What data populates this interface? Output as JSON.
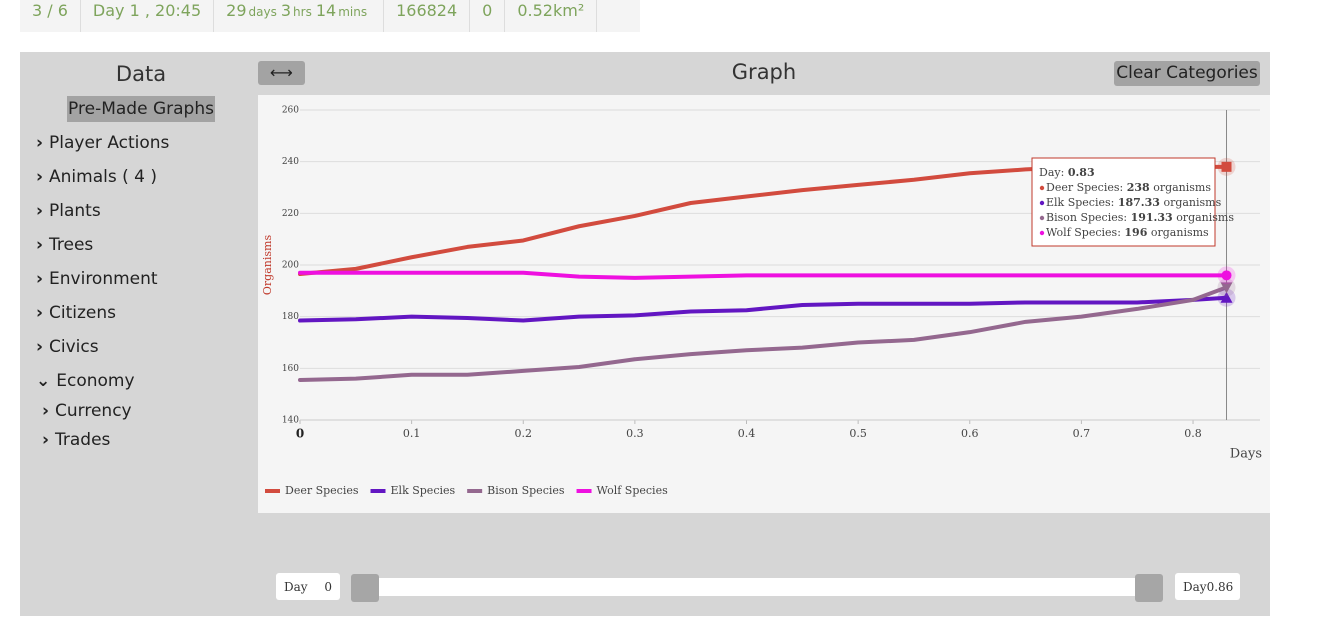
{
  "status_bar": {
    "round": "3 / 6",
    "clock": "Day 1 , 20:45",
    "duration": [
      {
        "number": "29",
        "unit": "days"
      },
      {
        "number": "3",
        "unit": "hrs"
      },
      {
        "number": "14",
        "unit": "mins"
      }
    ],
    "count": "166824",
    "zero": "0",
    "area": "0.52km²"
  },
  "sidebar": {
    "title": "Data",
    "button": "Pre-Made Graphs",
    "items": [
      "Player Actions",
      "Animals ( 4 )",
      "Plants",
      "Trees",
      "Environment",
      "Citizens",
      "Civics",
      "Economy"
    ],
    "subitems": [
      "Currency",
      "Trades"
    ]
  },
  "graph": {
    "type": "line",
    "title": "Graph",
    "clear_button": "Clear Categories",
    "y_label": "Organisms",
    "x_label": "Days",
    "x": [
      0,
      0.05,
      0.1,
      0.15,
      0.2,
      0.25,
      0.3,
      0.35,
      0.4,
      0.45,
      0.5,
      0.55,
      0.6,
      0.65,
      0.7,
      0.75,
      0.8,
      0.83
    ],
    "series": [
      {
        "name": "Deer Species",
        "color": "#d24b3e",
        "values": [
          196.5,
          198.5,
          203,
          207,
          209.5,
          215,
          219,
          224,
          226.5,
          229,
          231,
          233,
          235.5,
          237,
          238,
          238,
          238,
          238
        ]
      },
      {
        "name": "Elk Species",
        "color": "#6216c2",
        "values": [
          178.5,
          179,
          180,
          179.5,
          178.5,
          180,
          180.5,
          182,
          182.5,
          184.5,
          185,
          185,
          185,
          185.5,
          185.5,
          185.5,
          186.5,
          187.33
        ]
      },
      {
        "name": "Bison Species",
        "color": "#94688f",
        "values": [
          155.5,
          156,
          157.5,
          157.5,
          159,
          160.5,
          163.5,
          165.5,
          167,
          168,
          170,
          171,
          174,
          178,
          180,
          183,
          186.5,
          191.33
        ]
      },
      {
        "name": "Wolf Species",
        "color": "#ee10e0",
        "values": [
          197,
          197,
          197,
          197,
          197,
          195.5,
          195,
          195.5,
          196,
          196,
          196,
          196,
          196,
          196,
          196,
          196,
          196,
          196
        ]
      }
    ],
    "xlim": [
      0,
      0.86
    ],
    "xticks": [
      0,
      0.1,
      0.2,
      0.3,
      0.4,
      0.5,
      0.6,
      0.7,
      0.8
    ],
    "ylim": [
      140,
      260
    ],
    "yticks": [
      140,
      160,
      180,
      200,
      220,
      240,
      260
    ],
    "grid": true,
    "legend": "bottom-left",
    "tooltip": {
      "day_label": "Day:",
      "index": 17,
      "unit": "organisms",
      "labels": [
        "Deer Species:",
        "Elk Species:",
        "Bison Species:",
        "Wolf Species:"
      ]
    }
  },
  "slider": {
    "start_label": "Day",
    "start": 0,
    "end_label": "Day",
    "end": 0.86
  }
}
